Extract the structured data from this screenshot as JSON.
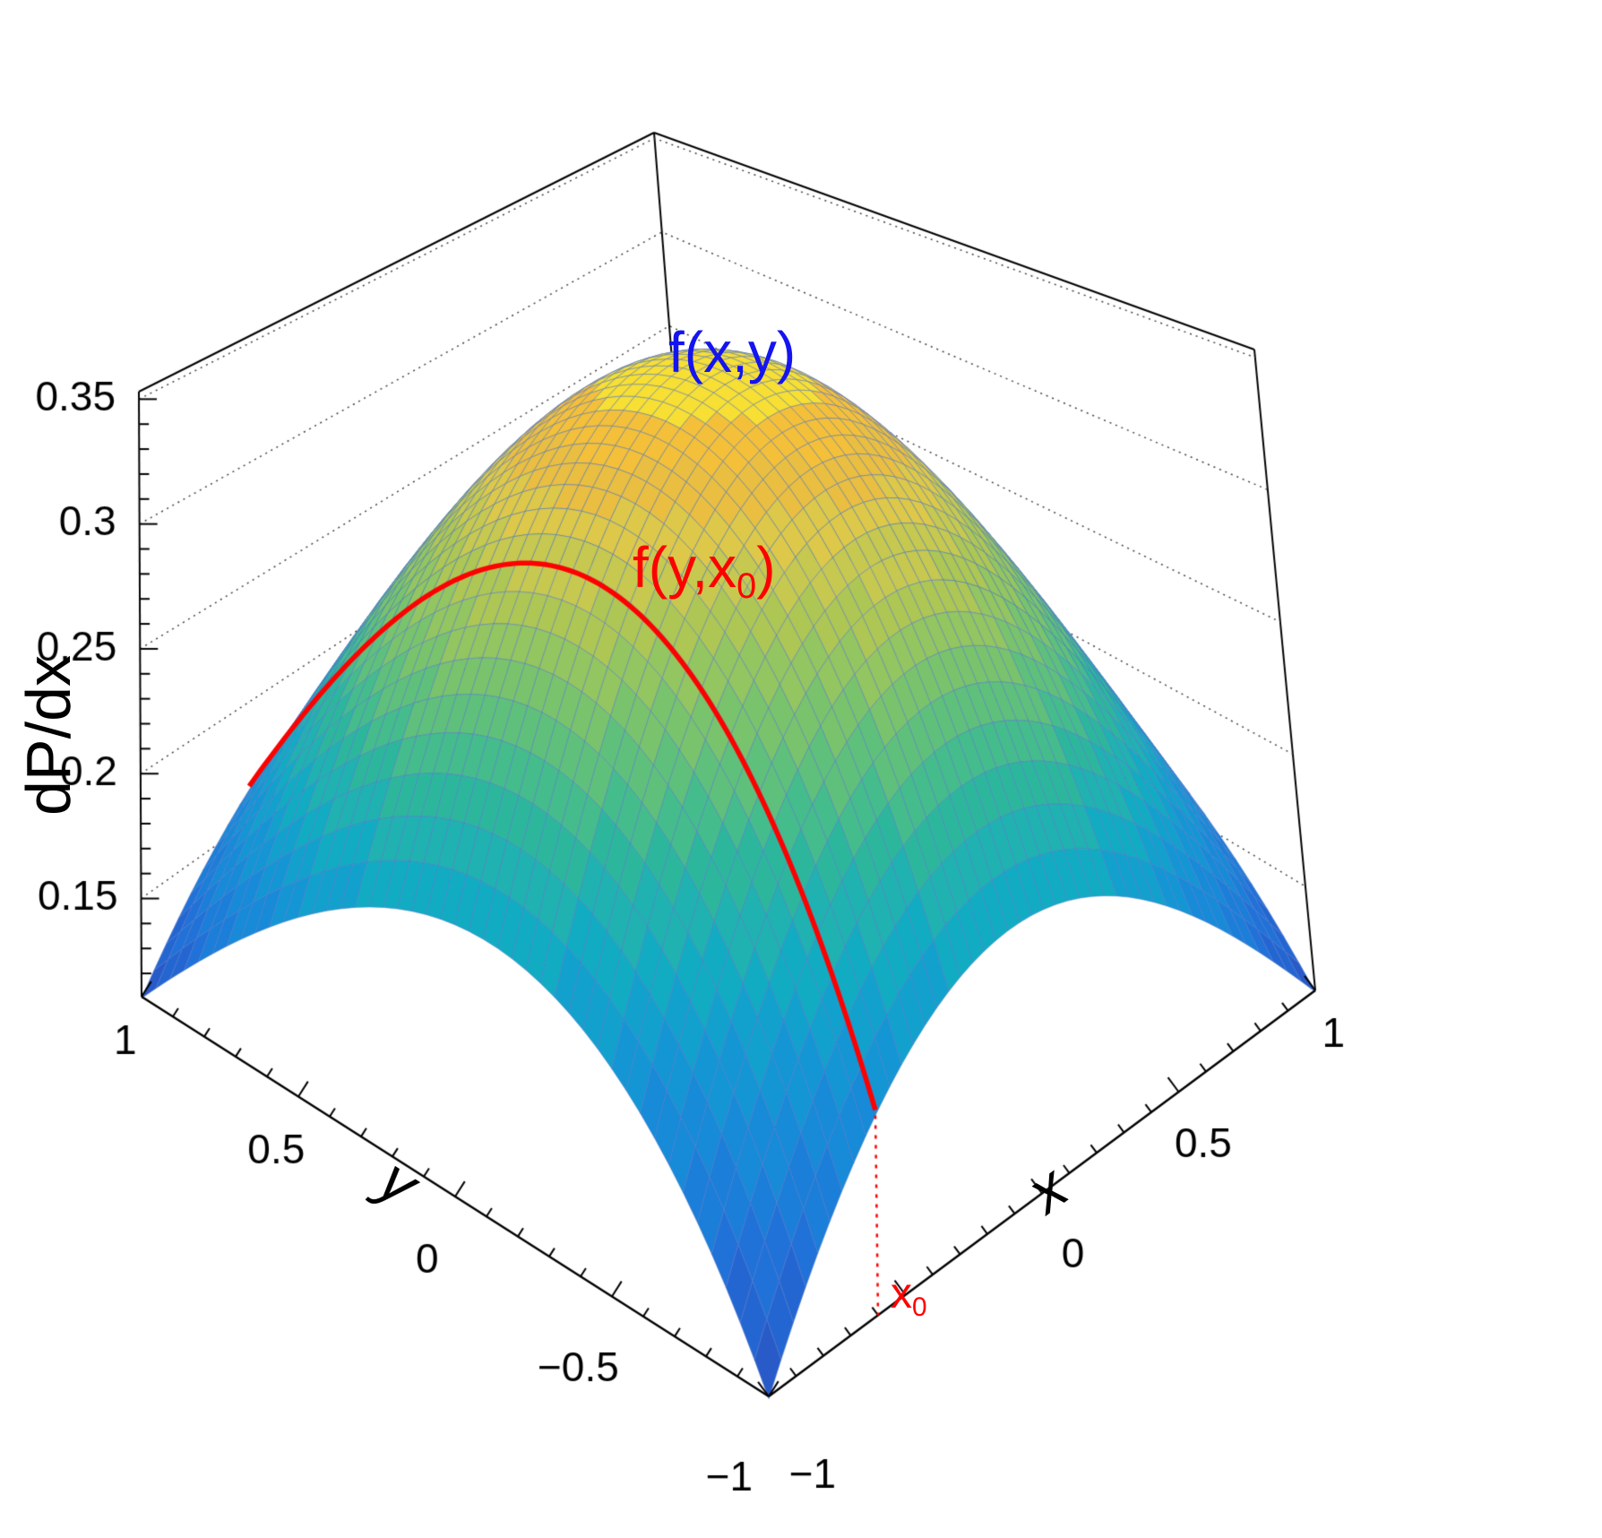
{
  "chart_data": {
    "type": "surface3d",
    "title": "",
    "xlabel": "x",
    "ylabel": "y",
    "zlabel": "dP/dx",
    "x_range": [
      -1,
      1
    ],
    "y_range": [
      -1,
      1
    ],
    "z_axis_range": [
      0.1107,
      0.353
    ],
    "grid": "dotted z-gridlines on back walls",
    "background": "#ffffff",
    "frame_color": "#000000",
    "surface": {
      "formula": "f(x,y) = fmax*(1 - a*x^2)*(1 - a*y^2)",
      "fmax": 0.34,
      "a": 0.431,
      "f_min": 0.11,
      "grid_n": 44,
      "contour_bands": 20
    },
    "sample_grid": {
      "x": [
        -1,
        -0.5,
        0,
        0.5,
        1
      ],
      "y": [
        -1,
        -0.5,
        0,
        0.5,
        1
      ],
      "f": [
        [
          0.1101,
          0.1726,
          0.1935,
          0.1726,
          0.1101
        ],
        [
          0.1726,
          0.2707,
          0.3034,
          0.2707,
          0.1726
        ],
        [
          0.1935,
          0.3034,
          0.34,
          0.3034,
          0.1935
        ],
        [
          0.1726,
          0.2707,
          0.3034,
          0.2707,
          0.1726
        ],
        [
          0.1101,
          0.1726,
          0.1935,
          0.1726,
          0.1101
        ]
      ]
    },
    "slice": {
      "x0": -0.6,
      "color": "#ff0000",
      "drop_line": "dotted red line from f(x0,-1) down to x axis"
    },
    "x_ticks": {
      "major": [
        -1,
        -0.5,
        0,
        0.5,
        1
      ],
      "minor_step": 0.1,
      "labels": [
        {
          "v": -1,
          "t": "−1"
        },
        {
          "v": 0,
          "t": "0"
        },
        {
          "v": 0.5,
          "t": "0.5"
        },
        {
          "v": 1,
          "t": "1"
        }
      ]
    },
    "y_ticks": {
      "major": [
        -1,
        -0.5,
        0,
        0.5,
        1
      ],
      "minor_step": 0.1,
      "labels": [
        {
          "v": 1,
          "t": "1"
        },
        {
          "v": 0.5,
          "t": "0.5"
        },
        {
          "v": 0,
          "t": "0"
        },
        {
          "v": -0.5,
          "t": "−0.5"
        },
        {
          "v": -1,
          "t": "−1"
        }
      ]
    },
    "z_ticks": {
      "major": [
        0.15,
        0.2,
        0.25,
        0.3,
        0.35
      ],
      "minor_step": 0.01,
      "labels": [
        "0.15",
        "0.2",
        "0.25",
        "0.3",
        "0.35"
      ]
    },
    "annotations": {
      "surface_label": {
        "text": "f(x,y)",
        "color": "#1414f0"
      },
      "slice_label": {
        "pre": "f(y,x",
        "sub": "0",
        "post": ")",
        "color": "#ff0000"
      },
      "x0_tick": {
        "base": "x",
        "sub": "0",
        "color": "#ff0000"
      }
    },
    "palette": [
      [
        0.0,
        "#2a55c4"
      ],
      [
        0.12,
        "#2070d8"
      ],
      [
        0.25,
        "#1590d8"
      ],
      [
        0.37,
        "#10abc4"
      ],
      [
        0.48,
        "#2db89b"
      ],
      [
        0.6,
        "#6cc272"
      ],
      [
        0.72,
        "#aac655"
      ],
      [
        0.82,
        "#dcc94a"
      ],
      [
        0.91,
        "#f3b73c"
      ],
      [
        1.0,
        "#f8ef31"
      ]
    ],
    "mesh_line_color": "rgba(80,115,200,0.5)"
  }
}
